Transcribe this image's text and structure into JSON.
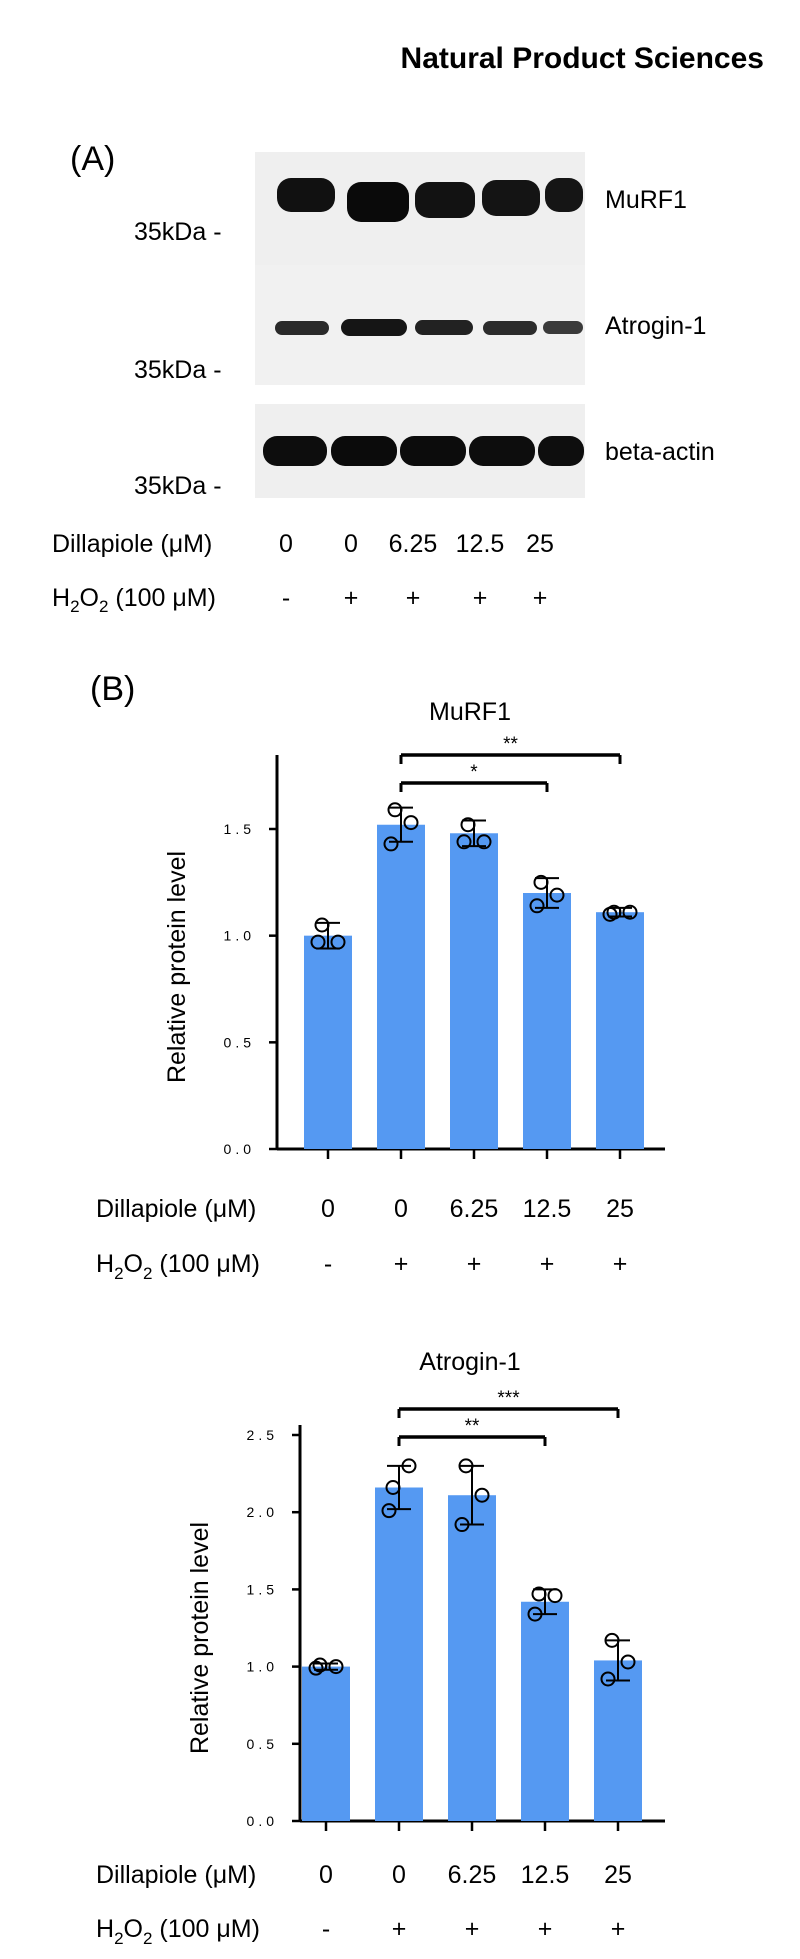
{
  "header": {
    "journal": "Natural Product Sciences"
  },
  "panel_a": {
    "label": "(A)",
    "blots": [
      {
        "protein": "MuRF1",
        "marker": "35kDa -"
      },
      {
        "protein": "Atrogin-1",
        "marker": "35kDa -"
      },
      {
        "protein": "beta-actin",
        "marker": "35kDa -"
      }
    ],
    "row_labels": {
      "dillapiole": "Dillapiole (μM)",
      "h2o2_prefix": "H",
      "h2o2_sub1": "2",
      "h2o2_mid": "O",
      "h2o2_sub2": "2",
      "h2o2_suffix": " (100 μM)"
    },
    "dillapiole_values": [
      "0",
      "0",
      "6.25",
      "12.5",
      "25"
    ],
    "h2o2_values": [
      "-",
      "+",
      "+",
      "+",
      "+"
    ]
  },
  "panel_b": {
    "label": "(B)"
  },
  "chart_data": [
    {
      "type": "bar",
      "title": "MuRF1",
      "ylabel": "Relative protein level",
      "xlabel": "",
      "categories": [
        "0",
        "0",
        "6.25",
        "12.5",
        "25"
      ],
      "h2o2": [
        "-",
        "+",
        "+",
        "+",
        "+"
      ],
      "values": [
        1.0,
        1.52,
        1.48,
        1.2,
        1.11
      ],
      "errors": [
        0.06,
        0.08,
        0.06,
        0.07,
        0.02
      ],
      "points": [
        [
          0.97,
          1.05,
          0.97
        ],
        [
          1.43,
          1.59,
          1.53
        ],
        [
          1.44,
          1.52,
          1.44
        ],
        [
          1.14,
          1.25,
          1.19
        ],
        [
          1.1,
          1.11,
          1.11
        ]
      ],
      "ylim": [
        0,
        1.8
      ],
      "yticks": [
        "0.0",
        "0.5",
        "1.0",
        "1.5"
      ],
      "significance": [
        {
          "from": 1,
          "to": 3,
          "label": "*"
        },
        {
          "from": 1,
          "to": 4,
          "label": "**"
        }
      ],
      "row_labels": {
        "dillapiole": "Dillapiole (μM)",
        "h2o2_prefix": "H",
        "h2o2_sub1": "2",
        "h2o2_mid": "O",
        "h2o2_sub2": "2",
        "h2o2_suffix": " (100 μM)"
      },
      "bar_color": "#5599f2"
    },
    {
      "type": "bar",
      "title": "Atrogin-1",
      "ylabel": "Relative protein level",
      "xlabel": "",
      "categories": [
        "0",
        "0",
        "6.25",
        "12.5",
        "25"
      ],
      "h2o2": [
        "-",
        "+",
        "+",
        "+",
        "+"
      ],
      "values": [
        1.0,
        2.16,
        2.11,
        1.42,
        1.04
      ],
      "errors": [
        0.02,
        0.14,
        0.19,
        0.08,
        0.13
      ],
      "points": [
        [
          0.99,
          1.01,
          1.0
        ],
        [
          2.01,
          2.16,
          2.3
        ],
        [
          1.92,
          2.3,
          2.11
        ],
        [
          1.34,
          1.47,
          1.46
        ],
        [
          0.92,
          1.17,
          1.03
        ]
      ],
      "ylim": [
        0,
        2.5
      ],
      "yticks": [
        "0.0",
        "0.5",
        "1.0",
        "1.5",
        "2.0",
        "2.5"
      ],
      "significance": [
        {
          "from": 1,
          "to": 3,
          "label": "**"
        },
        {
          "from": 1,
          "to": 4,
          "label": "***"
        }
      ],
      "row_labels": {
        "dillapiole": "Dillapiole (μM)",
        "h2o2_prefix": "H",
        "h2o2_sub1": "2",
        "h2o2_mid": "O",
        "h2o2_sub2": "2",
        "h2o2_suffix": " (100 μM)"
      },
      "bar_color": "#5599f2"
    }
  ]
}
